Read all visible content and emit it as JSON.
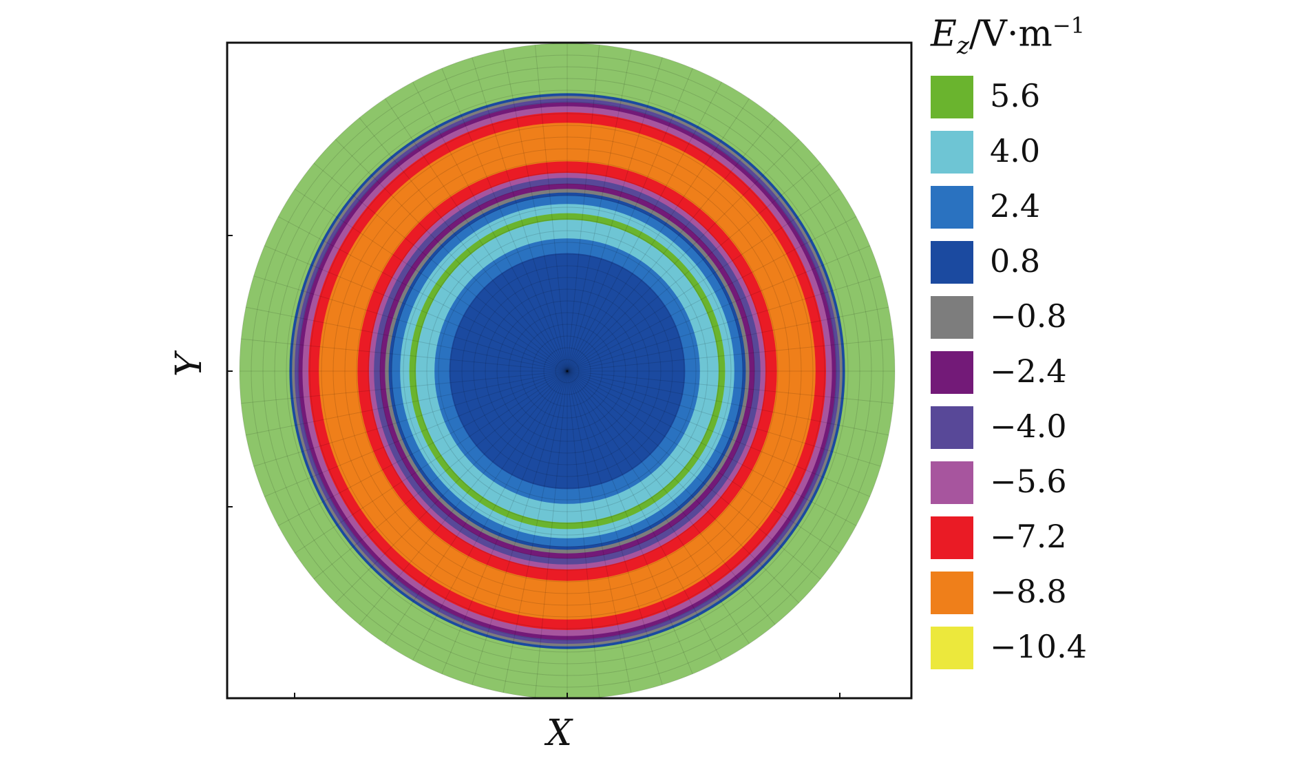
{
  "chart_data": {
    "type": "heatmap",
    "subtype": "polar-contour",
    "xlabel": "X",
    "ylabel": "Y",
    "legend": {
      "title": {
        "symbol": "E",
        "subscript": "z",
        "unit": "/V·m",
        "exponent": "−1"
      },
      "placement": "right",
      "levels": [
        {
          "value": "5.6",
          "color": "#6ab42e"
        },
        {
          "value": "4.0",
          "color": "#6ec5d4"
        },
        {
          "value": "2.4",
          "color": "#2a72c0"
        },
        {
          "value": "0.8",
          "color": "#1b4aa0"
        },
        {
          "value": "−0.8",
          "color": "#7d7d7d"
        },
        {
          "value": "−2.4",
          "color": "#731a78"
        },
        {
          "value": "−4.0",
          "color": "#584898"
        },
        {
          "value": "−5.6",
          "color": "#a7559e"
        },
        {
          "value": "−7.2",
          "color": "#ea1b25"
        },
        {
          "value": "−8.8",
          "color": "#ef7f1a"
        },
        {
          "value": "−10.4",
          "color": "#ece83c"
        }
      ]
    },
    "outer_band_color": "#8dc56a",
    "rings_from_outside": [
      {
        "r_frac": 1.0,
        "color": "#8dc56a"
      },
      {
        "r_frac": 0.848,
        "color": "#1b4aa0"
      },
      {
        "r_frac": 0.84,
        "color": "#7d7d7d"
      },
      {
        "r_frac": 0.832,
        "color": "#584898"
      },
      {
        "r_frac": 0.82,
        "color": "#731a78"
      },
      {
        "r_frac": 0.808,
        "color": "#a7559e"
      },
      {
        "r_frac": 0.79,
        "color": "#ea1b25"
      },
      {
        "r_frac": 0.758,
        "color": "#ef7f1a"
      },
      {
        "r_frac": 0.64,
        "color": "#ea1b25"
      },
      {
        "r_frac": 0.605,
        "color": "#a7559e"
      },
      {
        "r_frac": 0.59,
        "color": "#584898"
      },
      {
        "r_frac": 0.572,
        "color": "#731a78"
      },
      {
        "r_frac": 0.556,
        "color": "#7d7d7d"
      },
      {
        "r_frac": 0.545,
        "color": "#1b4aa0"
      },
      {
        "r_frac": 0.535,
        "color": "#2a72c0"
      },
      {
        "r_frac": 0.51,
        "color": "#6ec5d4"
      },
      {
        "r_frac": 0.482,
        "color": "#6ab42e"
      },
      {
        "r_frac": 0.462,
        "color": "#6ec5d4"
      },
      {
        "r_frac": 0.405,
        "color": "#2a72c0"
      },
      {
        "r_frac": 0.36,
        "color": "#1b4aa0"
      }
    ]
  }
}
